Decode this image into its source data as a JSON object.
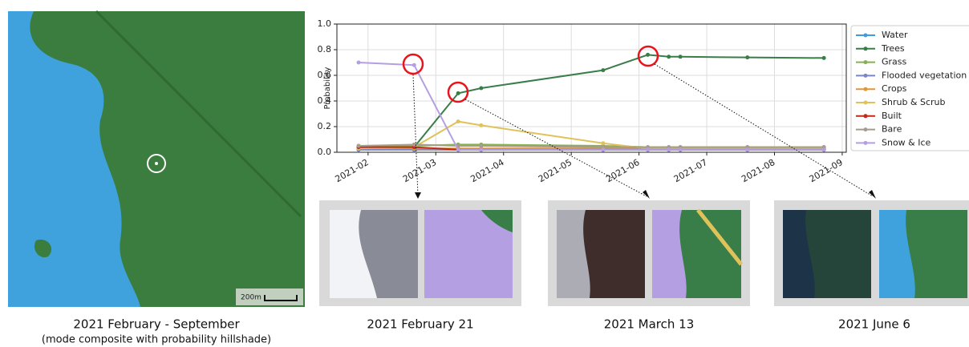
{
  "map": {
    "scale_label": "200m",
    "caption": "2021 February - September",
    "subcaption": "(mode composite with probability hillshade)"
  },
  "chart_data": {
    "type": "line",
    "ylabel": "Probability",
    "x": [
      1.86,
      2.68,
      3.33,
      3.67,
      5.47,
      6.13,
      6.44,
      6.61,
      7.6,
      8.73
    ],
    "series": [
      {
        "name": "Water",
        "color": "#419bdf",
        "values": [
          0.02,
          0.02,
          0.02,
          0.02,
          0.02,
          0.02,
          0.02,
          0.02,
          0.02,
          0.02
        ]
      },
      {
        "name": "Trees",
        "color": "#397d49",
        "values": [
          0.03,
          0.04,
          0.46,
          0.5,
          0.64,
          0.76,
          0.745,
          0.745,
          0.74,
          0.735
        ]
      },
      {
        "name": "Grass",
        "color": "#88b053",
        "values": [
          0.05,
          0.05,
          0.06,
          0.06,
          0.05,
          0.04,
          0.04,
          0.04,
          0.04,
          0.04
        ]
      },
      {
        "name": "Flooded vegetation",
        "color": "#7a87c6",
        "values": [
          0.02,
          0.02,
          0.02,
          0.02,
          0.02,
          0.02,
          0.02,
          0.02,
          0.02,
          0.02
        ]
      },
      {
        "name": "Crops",
        "color": "#e49635",
        "values": [
          0.04,
          0.03,
          0.03,
          0.03,
          0.03,
          0.03,
          0.03,
          0.03,
          0.03,
          0.03
        ]
      },
      {
        "name": "Shrub & Scrub",
        "color": "#dfc35a",
        "values": [
          0.03,
          0.04,
          0.24,
          0.21,
          0.07,
          0.03,
          0.03,
          0.03,
          0.03,
          0.03
        ]
      },
      {
        "name": "Built",
        "color": "#c4281b",
        "values": [
          0.04,
          0.04,
          0.02,
          0.02,
          0.02,
          0.02,
          0.02,
          0.02,
          0.02,
          0.02
        ]
      },
      {
        "name": "Bare",
        "color": "#a59b8f",
        "values": [
          0.05,
          0.06,
          0.05,
          0.05,
          0.04,
          0.04,
          0.04,
          0.04,
          0.04,
          0.04
        ]
      },
      {
        "name": "Snow & Ice",
        "color": "#b39fe1",
        "values": [
          0.7,
          0.68,
          0.02,
          0.02,
          0.02,
          0.02,
          0.02,
          0.02,
          0.02,
          0.02
        ]
      }
    ],
    "xlim": [
      1.54,
      9.06
    ],
    "xticks": [
      {
        "value": 2,
        "label": "2021-02"
      },
      {
        "value": 3,
        "label": "2021-03"
      },
      {
        "value": 4,
        "label": "2021-04"
      },
      {
        "value": 5,
        "label": "2021-05"
      },
      {
        "value": 6,
        "label": "2021-06"
      },
      {
        "value": 7,
        "label": "2021-07"
      },
      {
        "value": 8,
        "label": "2021-08"
      },
      {
        "value": 9,
        "label": "2021-09"
      }
    ],
    "ylim": [
      0,
      1
    ],
    "yticks": [
      {
        "value": 0,
        "label": "0.0"
      },
      0.2,
      0.4,
      0.6,
      0.8,
      {
        "value": 1,
        "label": "1.0"
      }
    ],
    "grid": true,
    "legend": "right"
  },
  "thumbnails": [
    {
      "caption": "2021 February 21"
    },
    {
      "caption": "2021 March 13"
    },
    {
      "caption": "2021 June 6"
    }
  ]
}
